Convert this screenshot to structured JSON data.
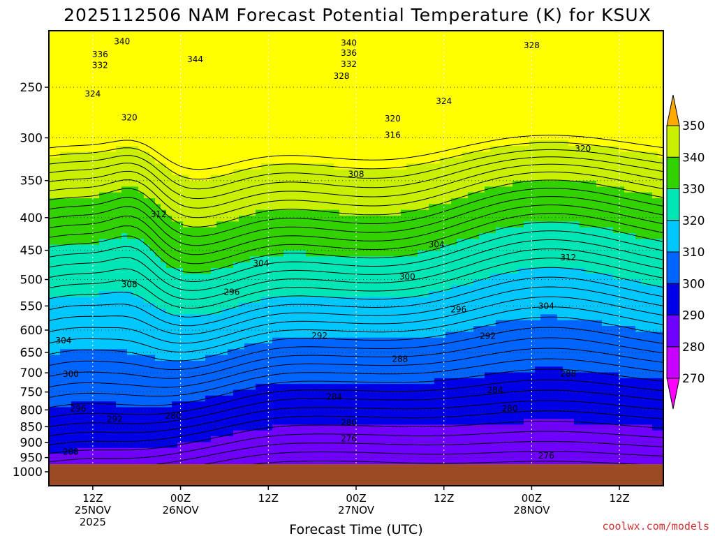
{
  "chart_data": {
    "type": "contour",
    "title": "2025112506 NAM Forecast Potential Temperature (K) for KSUX",
    "xlabel": "Forecast Time (UTC)",
    "credit": "coolwx.com/models",
    "y_axis": {
      "scale": "log",
      "inverted": true,
      "ticks": [
        250,
        300,
        350,
        400,
        450,
        500,
        550,
        600,
        650,
        700,
        750,
        800,
        850,
        900,
        950,
        1000
      ],
      "labels": [
        "250",
        "300",
        "350",
        "400",
        "450",
        "500",
        "550",
        "600",
        "650",
        "700",
        "750",
        "800",
        "850",
        "900",
        "950",
        "1000"
      ]
    },
    "x_axis": {
      "ticks": [
        {
          "line1": "12Z",
          "line2": "25NOV",
          "line3": "2025"
        },
        {
          "line1": "00Z",
          "line2": "26NOV",
          "line3": ""
        },
        {
          "line1": "12Z",
          "line2": "",
          "line3": ""
        },
        {
          "line1": "00Z",
          "line2": "27NOV",
          "line3": ""
        },
        {
          "line1": "12Z",
          "line2": "",
          "line3": ""
        },
        {
          "line1": "00Z",
          "line2": "28NOV",
          "line3": ""
        },
        {
          "line1": "12Z",
          "line2": "",
          "line3": ""
        }
      ],
      "hours_start": 0,
      "hours_end": 84,
      "tick_hours": [
        6,
        18,
        30,
        42,
        54,
        66,
        78
      ]
    },
    "colorbar": {
      "levels": [
        270,
        280,
        290,
        300,
        310,
        320,
        330,
        340,
        350
      ],
      "labels": [
        "270",
        "280",
        "290",
        "300",
        "310",
        "320",
        "330",
        "340",
        "350"
      ],
      "colors": [
        "#ff00ff",
        "#c800ff",
        "#7000ff",
        "#0000e6",
        "#0064ff",
        "#00c8ff",
        "#00e6b4",
        "#32d200",
        "#c8f000",
        "#ffff00",
        "#ffaa00"
      ]
    },
    "contour_labels": [
      {
        "value": "340",
        "hour": 10,
        "pressure": 212
      },
      {
        "value": "336",
        "hour": 7,
        "pressure": 222
      },
      {
        "value": "332",
        "hour": 7,
        "pressure": 231
      },
      {
        "value": "324",
        "hour": 6,
        "pressure": 256
      },
      {
        "value": "320",
        "hour": 11,
        "pressure": 279
      },
      {
        "value": "344",
        "hour": 20,
        "pressure": 226
      },
      {
        "value": "340",
        "hour": 41,
        "pressure": 213
      },
      {
        "value": "336",
        "hour": 41,
        "pressure": 221
      },
      {
        "value": "332",
        "hour": 41,
        "pressure": 230
      },
      {
        "value": "328",
        "hour": 40,
        "pressure": 240
      },
      {
        "value": "328",
        "hour": 66,
        "pressure": 215
      },
      {
        "value": "324",
        "hour": 54,
        "pressure": 263
      },
      {
        "value": "320",
        "hour": 47,
        "pressure": 280
      },
      {
        "value": "316",
        "hour": 47,
        "pressure": 297
      },
      {
        "value": "320",
        "hour": 73,
        "pressure": 312
      },
      {
        "value": "308",
        "hour": 42,
        "pressure": 342
      },
      {
        "value": "312",
        "hour": 15,
        "pressure": 395
      },
      {
        "value": "304",
        "hour": 53,
        "pressure": 441
      },
      {
        "value": "304",
        "hour": 29,
        "pressure": 472
      },
      {
        "value": "312",
        "hour": 71,
        "pressure": 462
      },
      {
        "value": "308",
        "hour": 11,
        "pressure": 509
      },
      {
        "value": "300",
        "hour": 49,
        "pressure": 495
      },
      {
        "value": "296",
        "hour": 25,
        "pressure": 523
      },
      {
        "value": "296",
        "hour": 56,
        "pressure": 557
      },
      {
        "value": "304",
        "hour": 68,
        "pressure": 550
      },
      {
        "value": "292",
        "hour": 37,
        "pressure": 612
      },
      {
        "value": "292",
        "hour": 60,
        "pressure": 613
      },
      {
        "value": "304",
        "hour": 2,
        "pressure": 623
      },
      {
        "value": "288",
        "hour": 48,
        "pressure": 666
      },
      {
        "value": "300",
        "hour": 3,
        "pressure": 703
      },
      {
        "value": "288",
        "hour": 71,
        "pressure": 702
      },
      {
        "value": "284",
        "hour": 39,
        "pressure": 763
      },
      {
        "value": "284",
        "hour": 61,
        "pressure": 745
      },
      {
        "value": "296",
        "hour": 4,
        "pressure": 796
      },
      {
        "value": "280",
        "hour": 17,
        "pressure": 818
      },
      {
        "value": "280",
        "hour": 63,
        "pressure": 796
      },
      {
        "value": "292",
        "hour": 9,
        "pressure": 827
      },
      {
        "value": "280",
        "hour": 41,
        "pressure": 837
      },
      {
        "value": "276",
        "hour": 41,
        "pressure": 887
      },
      {
        "value": "288",
        "hour": 3,
        "pressure": 931
      },
      {
        "value": "276",
        "hour": 68,
        "pressure": 944
      }
    ]
  }
}
